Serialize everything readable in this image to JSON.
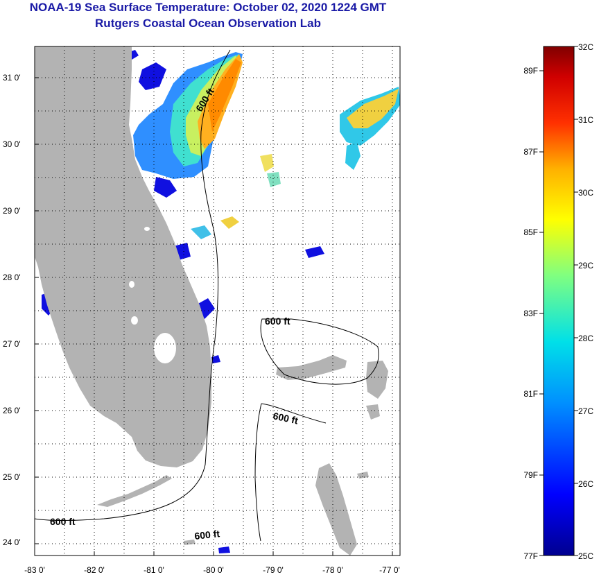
{
  "title": {
    "line1": "NOAA-19 Sea Surface Temperature:  October 02, 2020 1224 GMT",
    "line2": "Rutgers Coastal Ocean Observation Lab"
  },
  "map": {
    "x_ticks": [
      "-83 0'",
      "-82 0'",
      "-81 0'",
      "-80 0'",
      "-79 0'",
      "-78 0'",
      "-77 0'"
    ],
    "y_ticks": [
      "31 0'",
      "30 0'",
      "29 0'",
      "28 0'",
      "27 0'",
      "26 0'",
      "25 0'",
      "24 0'"
    ],
    "contour_labels": [
      "600 ft",
      "600 ft",
      "600 ft",
      "600 ft",
      "600 ft"
    ]
  },
  "colorbar": {
    "celsius": [
      "32C",
      "31C",
      "30C",
      "29C",
      "28C",
      "27C",
      "26C",
      "25C"
    ],
    "fahrenheit": [
      "89F",
      "87F",
      "85F",
      "83F",
      "81F",
      "79F",
      "77F"
    ]
  },
  "colors": {
    "title": "#1a1aa6",
    "land": "#b3b3b3",
    "water": "#ffffff"
  }
}
